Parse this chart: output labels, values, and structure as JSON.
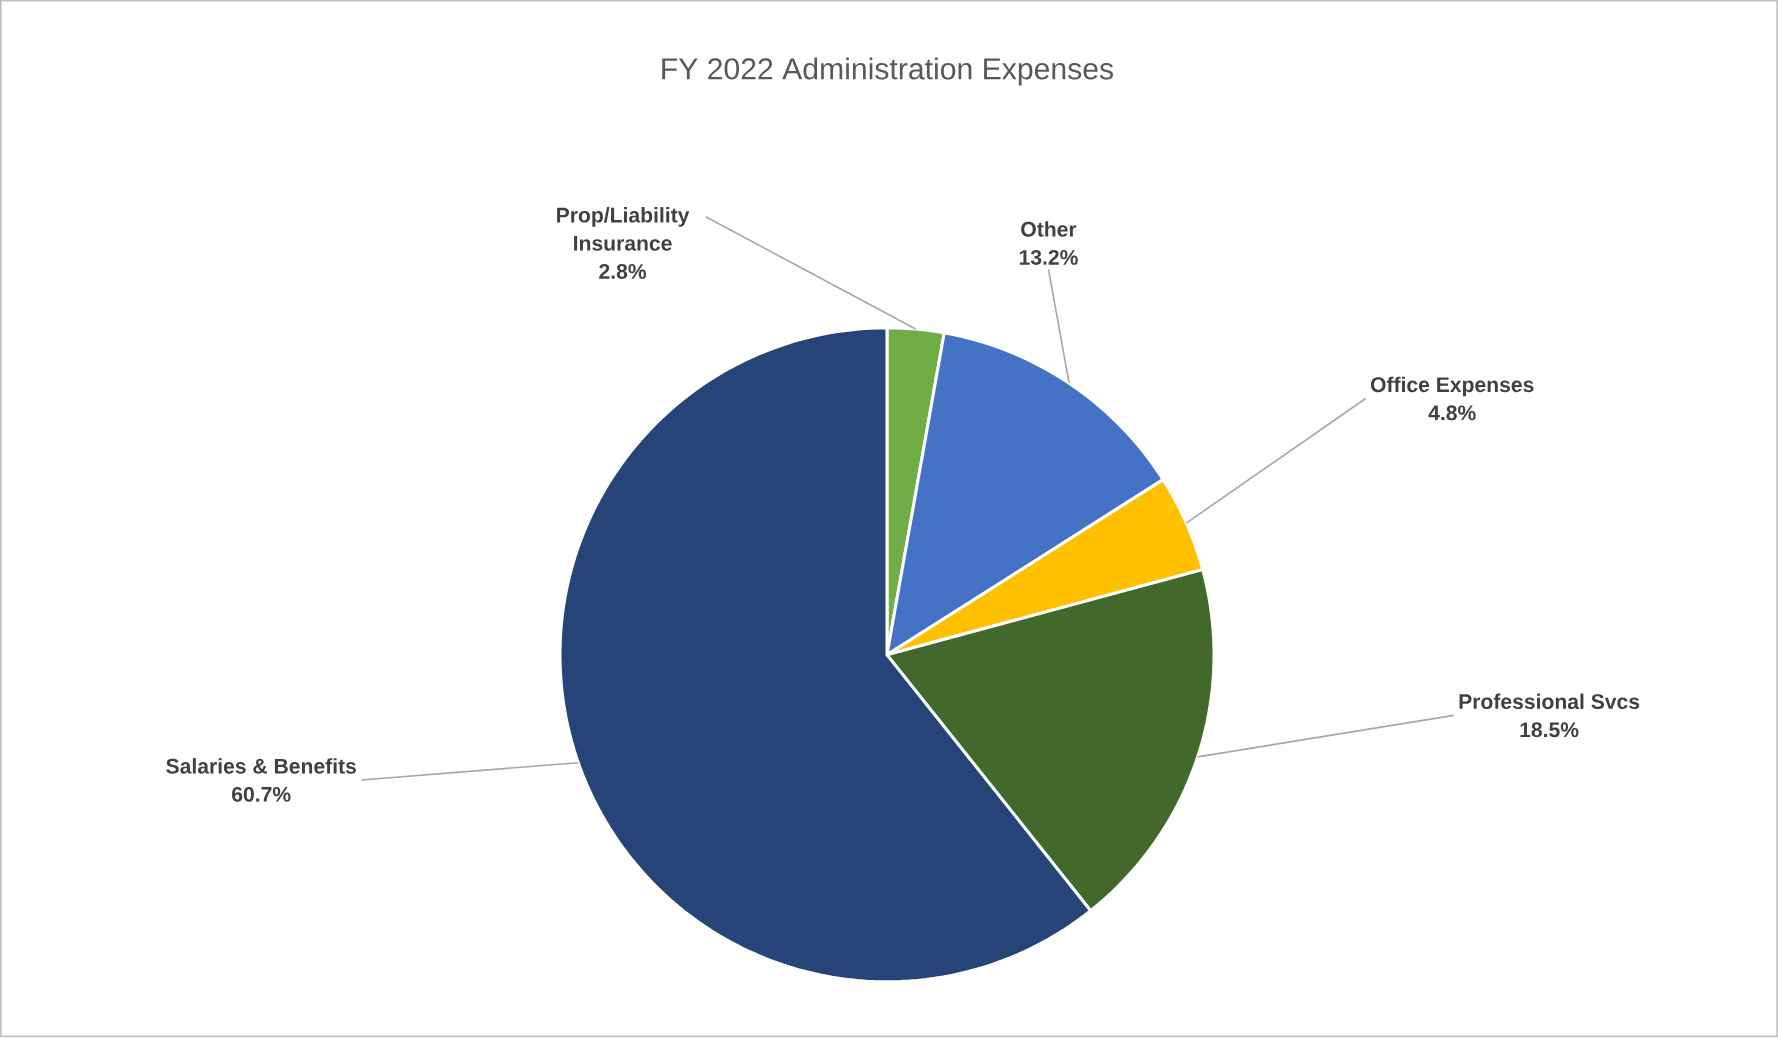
{
  "chart_data": {
    "type": "pie",
    "title": "FY 2022 Administration Expenses",
    "categories": [
      "Prop/Liability Insurance",
      "Other",
      "Office Expenses",
      "Professional Svcs",
      "Salaries & Benefits"
    ],
    "values": [
      2.8,
      13.2,
      4.8,
      18.5,
      60.7
    ],
    "colors": [
      "#70ad47",
      "#4472c4",
      "#ffc000",
      "#43682b",
      "#264478"
    ],
    "value_labels": [
      "2.8%",
      "13.2%",
      "4.8%",
      "18.5%",
      "60.7%"
    ]
  }
}
